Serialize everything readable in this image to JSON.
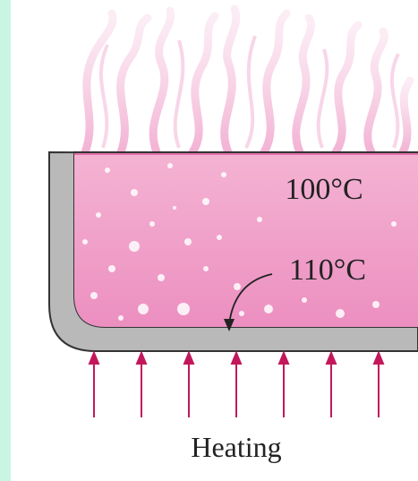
{
  "labels": {
    "surface_temperature": "100°C",
    "bottom_temperature": "110°C",
    "heat_source": "Heating"
  }
}
